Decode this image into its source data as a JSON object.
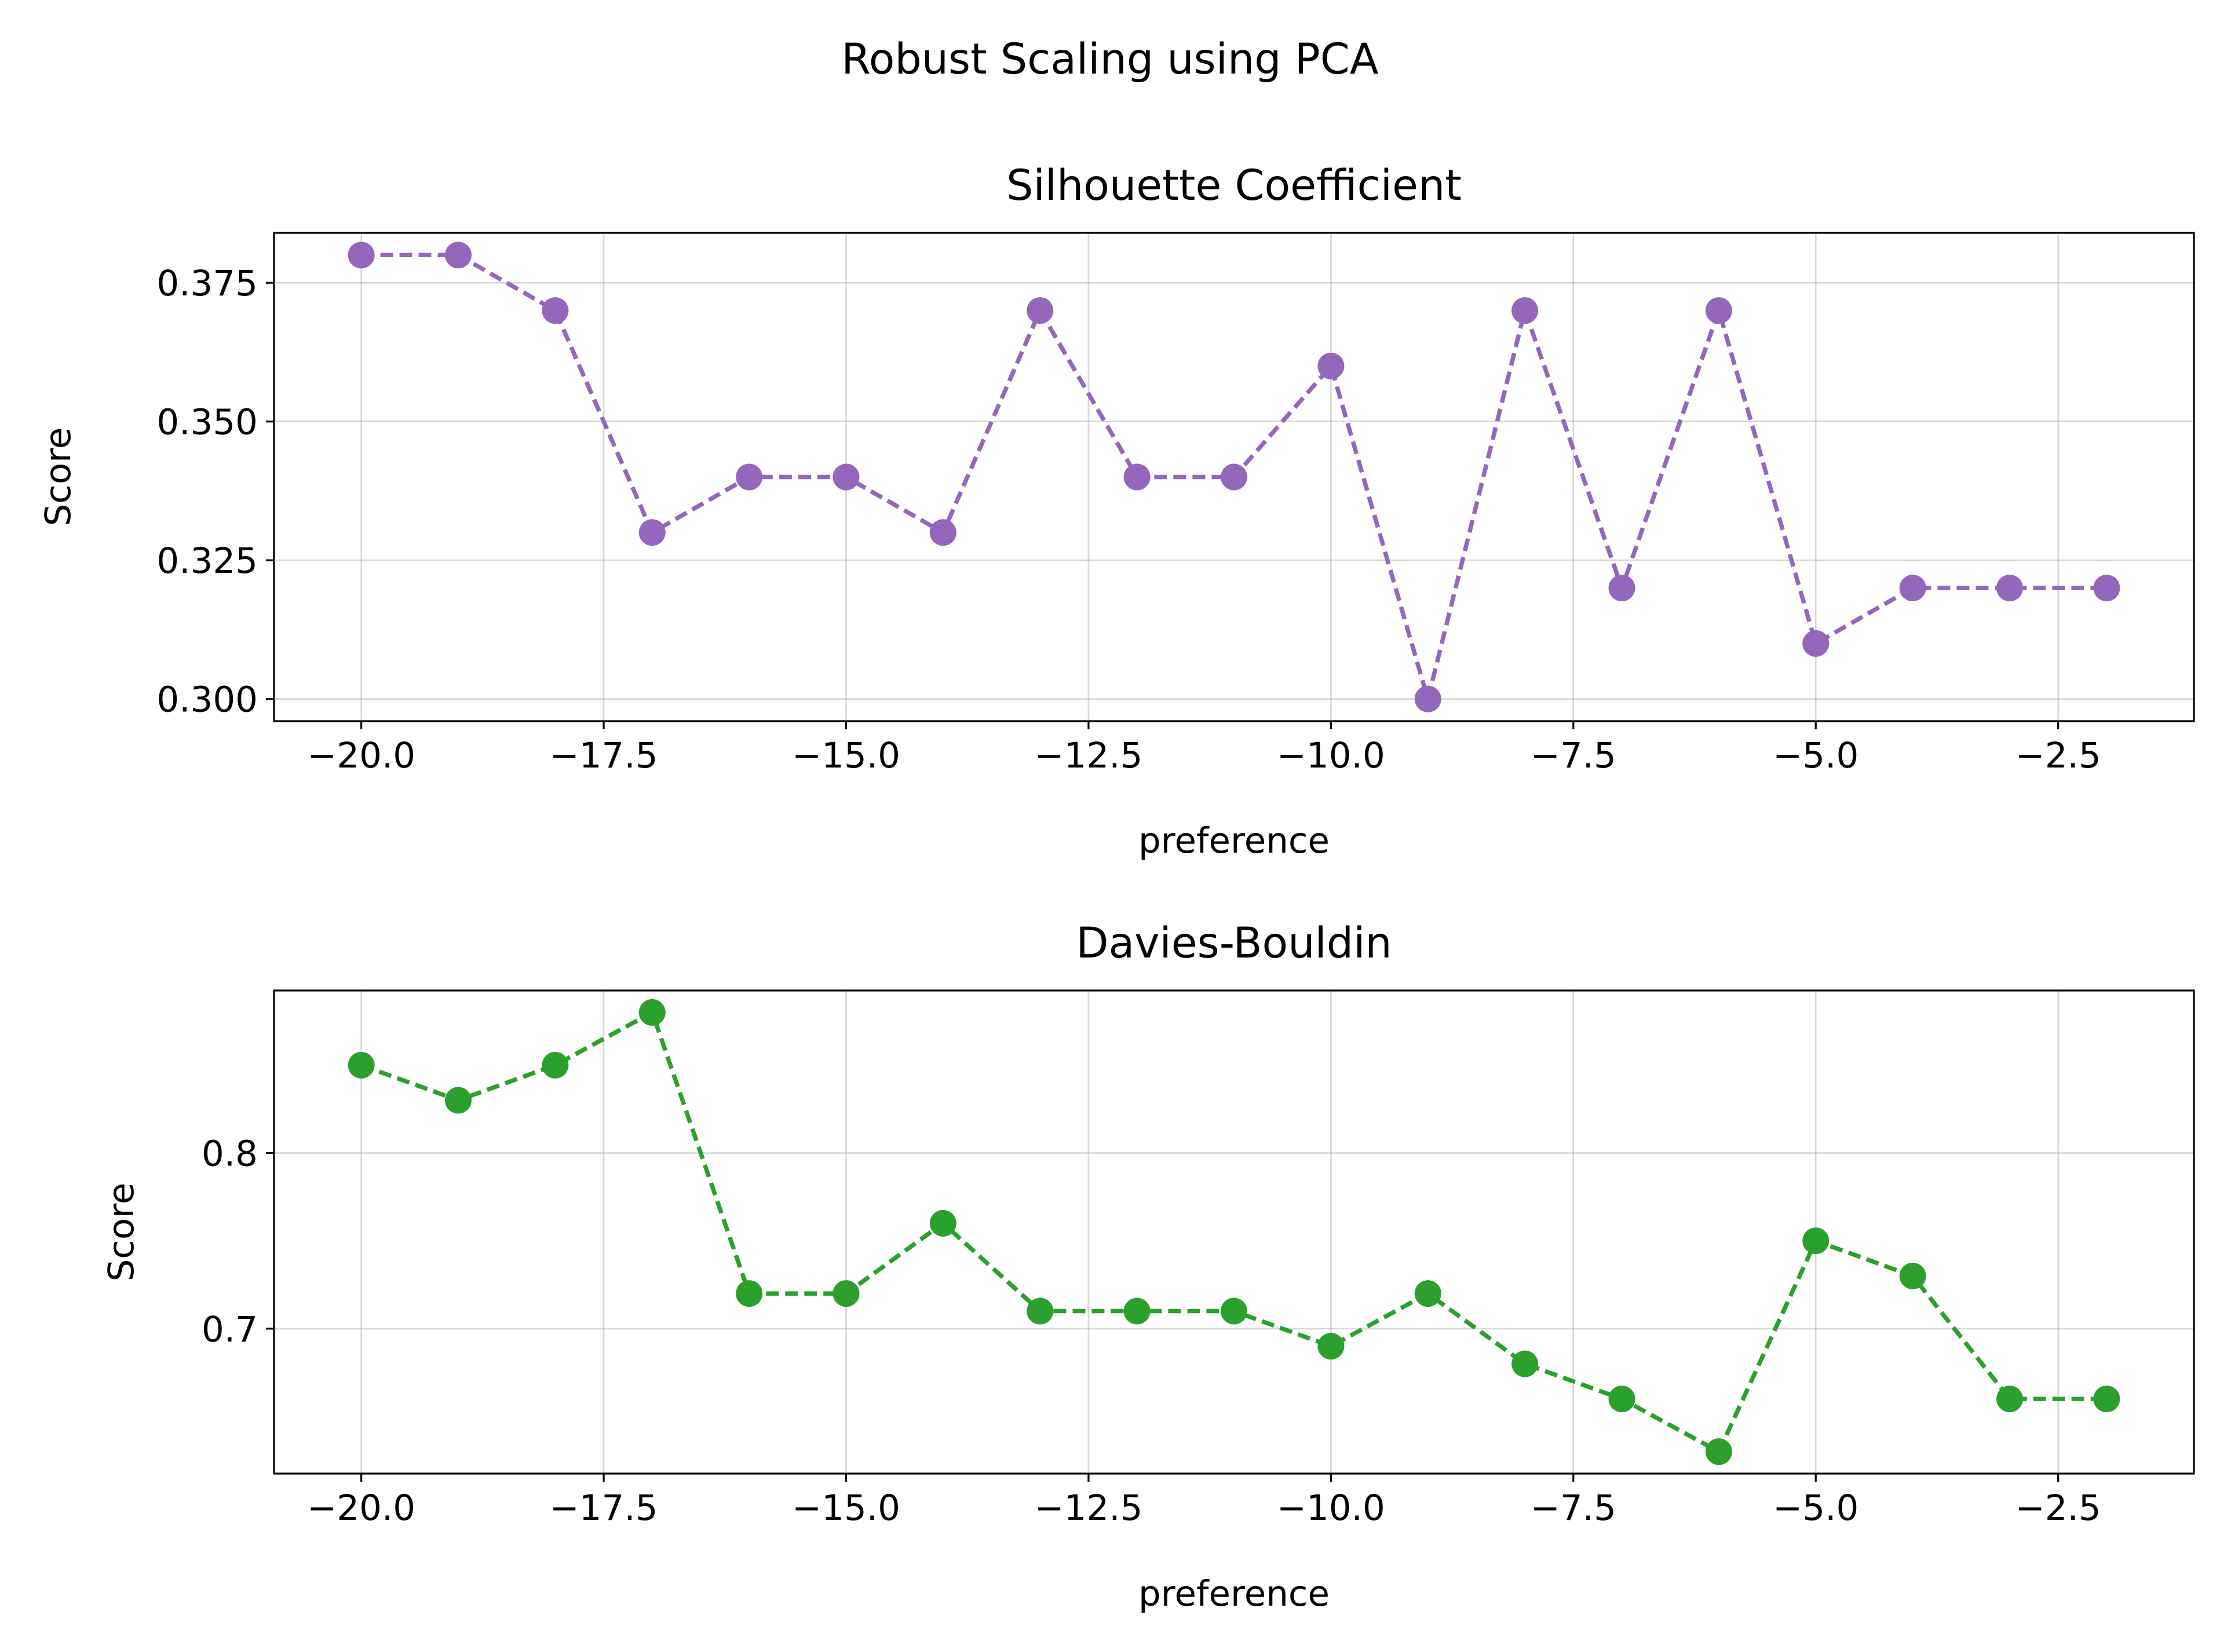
{
  "figure": {
    "suptitle": "Robust Scaling using PCA"
  },
  "chart_data": [
    {
      "type": "line",
      "title": "Silhouette Coefficient",
      "xlabel": "preference",
      "ylabel": "Score",
      "xlim": [
        -20.9,
        -1.1
      ],
      "ylim": [
        0.296,
        0.384
      ],
      "xticks": [
        -20.0,
        -17.5,
        -15.0,
        -12.5,
        -10.0,
        -7.5,
        -5.0,
        -2.5
      ],
      "xtick_labels": [
        "−20.0",
        "−17.5",
        "−15.0",
        "−12.5",
        "−10.0",
        "−7.5",
        "−5.0",
        "−2.5"
      ],
      "yticks": [
        0.3,
        0.325,
        0.35,
        0.375
      ],
      "ytick_labels": [
        "0.300",
        "0.325",
        "0.350",
        "0.375"
      ],
      "grid": true,
      "color": "#9467bd",
      "line_style": "dashed",
      "marker": "circle",
      "x": [
        -20,
        -19,
        -18,
        -17,
        -16,
        -15,
        -14,
        -13,
        -12,
        -11,
        -10,
        -9,
        -8,
        -7,
        -6,
        -5,
        -4,
        -3,
        -2
      ],
      "y": [
        0.38,
        0.38,
        0.37,
        0.33,
        0.34,
        0.34,
        0.33,
        0.37,
        0.34,
        0.34,
        0.36,
        0.3,
        0.37,
        0.32,
        0.37,
        0.31,
        0.32,
        0.32,
        0.32
      ]
    },
    {
      "type": "line",
      "title": "Davies-Bouldin",
      "xlabel": "preference",
      "ylabel": "Score",
      "xlim": [
        -20.9,
        -1.1
      ],
      "ylim": [
        0.6175,
        0.8925
      ],
      "xticks": [
        -20.0,
        -17.5,
        -15.0,
        -12.5,
        -10.0,
        -7.5,
        -5.0,
        -2.5
      ],
      "xtick_labels": [
        "−20.0",
        "−17.5",
        "−15.0",
        "−12.5",
        "−10.0",
        "−7.5",
        "−5.0",
        "−2.5"
      ],
      "yticks": [
        0.7,
        0.8
      ],
      "ytick_labels": [
        "0.7",
        "0.8"
      ],
      "grid": true,
      "color": "#2ca02c",
      "line_style": "dashed",
      "marker": "circle",
      "x": [
        -20,
        -19,
        -18,
        -17,
        -16,
        -15,
        -14,
        -13,
        -12,
        -11,
        -10,
        -9,
        -8,
        -7,
        -6,
        -5,
        -4,
        -3,
        -2
      ],
      "y": [
        0.85,
        0.83,
        0.85,
        0.88,
        0.72,
        0.72,
        0.76,
        0.71,
        0.71,
        0.71,
        0.69,
        0.72,
        0.68,
        0.66,
        0.63,
        0.75,
        0.73,
        0.66,
        0.66
      ]
    }
  ]
}
